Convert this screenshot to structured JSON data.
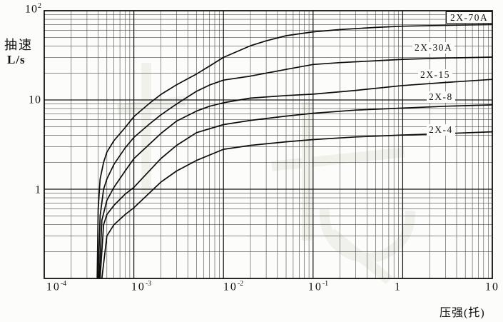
{
  "y_axis": {
    "title": "抽速",
    "unit": "L/s",
    "ticks": [
      {
        "base": "10",
        "exp": "2"
      },
      {
        "base": "10",
        "exp": ""
      },
      {
        "base": "1",
        "exp": ""
      }
    ]
  },
  "x_axis": {
    "title": "压强(托)",
    "ticks": [
      {
        "base": "10",
        "exp": "-4"
      },
      {
        "base": "10",
        "exp": "-3"
      },
      {
        "base": "10",
        "exp": "-2"
      },
      {
        "base": "10",
        "exp": "-1"
      },
      {
        "base": "1",
        "exp": ""
      },
      {
        "base": "10",
        "exp": ""
      }
    ]
  },
  "chart_data": {
    "type": "line",
    "title": "",
    "xlabel": "压强(托)",
    "ylabel": "抽速 L/s",
    "x_scale": "log",
    "y_scale": "log",
    "xlim": [
      0.0001,
      10
    ],
    "ylim": [
      0.1,
      100
    ],
    "grid": "log-log major and minor lines, both axes",
    "legend_position": "labels-on-curves",
    "series": [
      {
        "name": "2X-70A",
        "points": [
          [
            0.00039,
            0.1
          ],
          [
            0.0004,
            0.6
          ],
          [
            0.00042,
            1.3
          ],
          [
            0.00046,
            2.0
          ],
          [
            0.0005,
            2.6
          ],
          [
            0.0006,
            3.5
          ],
          [
            0.0008,
            4.9
          ],
          [
            0.001,
            6.5
          ],
          [
            0.0015,
            9.2
          ],
          [
            0.002,
            11.5
          ],
          [
            0.003,
            14.8
          ],
          [
            0.005,
            19.5
          ],
          [
            0.007,
            24
          ],
          [
            0.01,
            30
          ],
          [
            0.02,
            40.5
          ],
          [
            0.03,
            46
          ],
          [
            0.05,
            52.5
          ],
          [
            0.1,
            58
          ],
          [
            0.2,
            61.5
          ],
          [
            0.5,
            65
          ],
          [
            1,
            67
          ],
          [
            3,
            68.5
          ],
          [
            10,
            70
          ]
        ]
      },
      {
        "name": "2X-30A",
        "points": [
          [
            0.0004,
            0.1
          ],
          [
            0.00042,
            0.5
          ],
          [
            0.00046,
            1.0
          ],
          [
            0.0005,
            1.3
          ],
          [
            0.0006,
            1.9
          ],
          [
            0.0008,
            2.9
          ],
          [
            0.001,
            3.8
          ],
          [
            0.0015,
            5.4
          ],
          [
            0.002,
            6.8
          ],
          [
            0.003,
            9.0
          ],
          [
            0.005,
            12.5
          ],
          [
            0.007,
            14.7
          ],
          [
            0.01,
            16.7
          ],
          [
            0.02,
            18.5
          ],
          [
            0.05,
            22
          ],
          [
            0.1,
            25
          ],
          [
            0.2,
            26.2
          ],
          [
            0.5,
            27.5
          ],
          [
            1,
            28.5
          ],
          [
            3,
            29.5
          ],
          [
            10,
            30.2
          ]
        ]
      },
      {
        "name": "2X-15",
        "points": [
          [
            0.00041,
            0.1
          ],
          [
            0.00044,
            0.45
          ],
          [
            0.0005,
            0.75
          ],
          [
            0.0006,
            1.05
          ],
          [
            0.0008,
            1.6
          ],
          [
            0.001,
            2.2
          ],
          [
            0.002,
            4.2
          ],
          [
            0.003,
            5.8
          ],
          [
            0.005,
            7.5
          ],
          [
            0.007,
            8.5
          ],
          [
            0.01,
            9.3
          ],
          [
            0.02,
            10.5
          ],
          [
            0.05,
            11.2
          ],
          [
            0.1,
            11.6
          ],
          [
            0.3,
            12.8
          ],
          [
            1,
            14.5
          ],
          [
            3,
            15.7
          ],
          [
            10,
            17
          ]
        ]
      },
      {
        "name": "2X-8",
        "points": [
          [
            0.00042,
            0.1
          ],
          [
            0.00046,
            0.4
          ],
          [
            0.0005,
            0.52
          ],
          [
            0.0006,
            0.66
          ],
          [
            0.0008,
            0.88
          ],
          [
            0.001,
            1.05
          ],
          [
            0.002,
            2.2
          ],
          [
            0.003,
            3.1
          ],
          [
            0.005,
            4.3
          ],
          [
            0.01,
            5.3
          ],
          [
            0.02,
            5.9
          ],
          [
            0.05,
            6.6
          ],
          [
            0.1,
            7.1
          ],
          [
            0.3,
            7.7
          ],
          [
            1,
            8.1
          ],
          [
            3,
            8.5
          ],
          [
            10,
            8.8
          ]
        ]
      },
      {
        "name": "2X-4",
        "points": [
          [
            0.00044,
            0.1
          ],
          [
            0.0005,
            0.3
          ],
          [
            0.0006,
            0.4
          ],
          [
            0.0008,
            0.52
          ],
          [
            0.001,
            0.62
          ],
          [
            0.002,
            1.2
          ],
          [
            0.003,
            1.6
          ],
          [
            0.005,
            2.1
          ],
          [
            0.01,
            2.8
          ],
          [
            0.02,
            3.1
          ],
          [
            0.05,
            3.4
          ],
          [
            0.1,
            3.6
          ],
          [
            0.3,
            3.85
          ],
          [
            1,
            4.05
          ],
          [
            3,
            4.2
          ],
          [
            10,
            4.4
          ]
        ]
      }
    ],
    "colors": {
      "curve": "#0c0c0c",
      "grid_minor": "#4a4a4a",
      "grid_major": "#161616",
      "border": "#111111",
      "background": "#fcfcfa"
    }
  }
}
